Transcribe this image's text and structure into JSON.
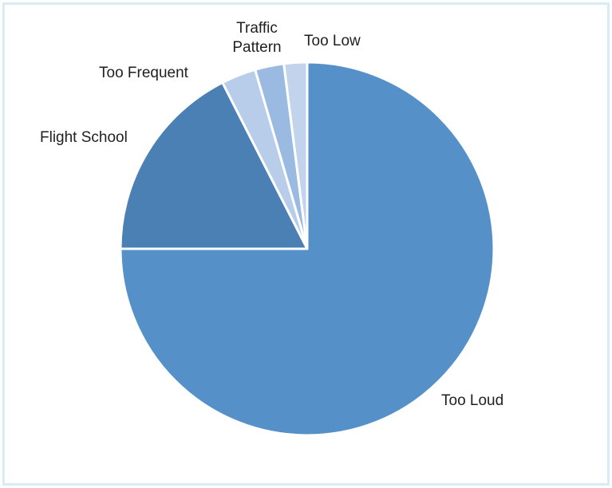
{
  "chart_data": {
    "type": "pie",
    "title": "",
    "categories": [
      "Too Loud",
      "Flight School",
      "Too Frequent",
      "Traffic Pattern",
      "Too Low"
    ],
    "values": [
      75,
      17.5,
      3,
      2.5,
      2
    ],
    "colors": [
      "#5591c8",
      "#4a80b3",
      "#b8cde9",
      "#9bbae2",
      "#c2d4ec"
    ],
    "labels": [
      "Too Loud",
      "Flight School",
      "Too Frequent",
      "Traffic\nPattern",
      "Too Low"
    ],
    "legend": "none",
    "start_angle_deg": 0,
    "direction": "clockwise"
  }
}
